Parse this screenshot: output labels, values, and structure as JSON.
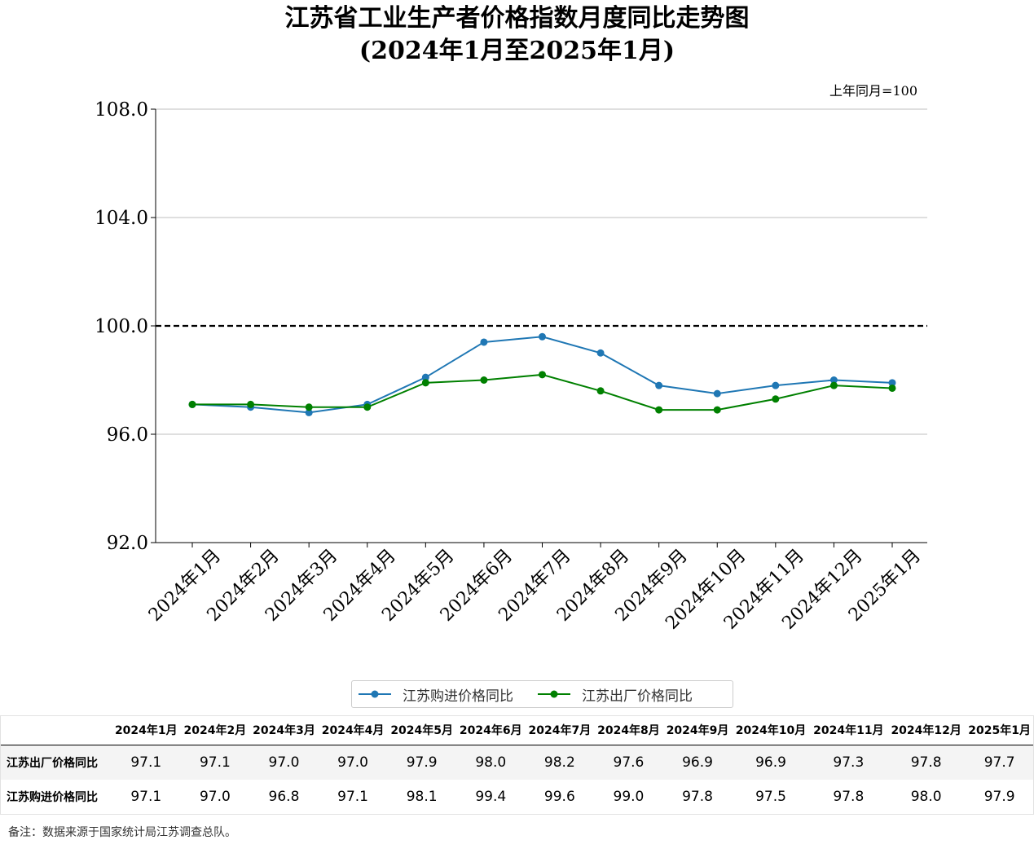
{
  "title_line1": "江苏省工业生产者价格指数月度同比走势图",
  "title_line2": "(2024年1月至2025年1月)",
  "unit_note": "上年同月=100",
  "footnote": "备注：数据来源于国家统计局江苏调查总队。",
  "chart_data": {
    "type": "line",
    "title": "江苏省工业生产者价格指数月度同比走势图 (2024年1月至2025年1月)",
    "xlabel": "",
    "ylabel": "",
    "ylim": [
      92.0,
      108.0
    ],
    "yticks": [
      "92.0",
      "96.0",
      "100.0",
      "104.0",
      "108.0"
    ],
    "reference_line": 100.0,
    "grid": "horizontal",
    "categories": [
      "2024年1月",
      "2024年2月",
      "2024年3月",
      "2024年4月",
      "2024年5月",
      "2024年6月",
      "2024年7月",
      "2024年8月",
      "2024年9月",
      "2024年10月",
      "2024年11月",
      "2024年12月",
      "2025年1月"
    ],
    "series": [
      {
        "name": "江苏购进价格同比",
        "color": "#1f77b4",
        "values": [
          97.1,
          97.0,
          96.8,
          97.1,
          98.1,
          99.4,
          99.6,
          99.0,
          97.8,
          97.5,
          97.8,
          98.0,
          97.9
        ]
      },
      {
        "name": "江苏出厂价格同比",
        "color": "#008000",
        "values": [
          97.1,
          97.1,
          97.0,
          97.0,
          97.9,
          98.0,
          98.2,
          97.6,
          96.9,
          96.9,
          97.3,
          97.8,
          97.7
        ]
      }
    ],
    "legend_position": "bottom-center"
  },
  "table": {
    "headers": [
      "2024年1月",
      "2024年2月",
      "2024年3月",
      "2024年4月",
      "2024年5月",
      "2024年6月",
      "2024年7月",
      "2024年8月",
      "2024年9月",
      "2024年10月",
      "2024年11月",
      "2024年12月",
      "2025年1月"
    ],
    "rows": [
      {
        "label": "江苏出厂价格同比",
        "values": [
          "97.1",
          "97.1",
          "97.0",
          "97.0",
          "97.9",
          "98.0",
          "98.2",
          "97.6",
          "96.9",
          "96.9",
          "97.3",
          "97.8",
          "97.7"
        ]
      },
      {
        "label": "江苏购进价格同比",
        "values": [
          "97.1",
          "97.0",
          "96.8",
          "97.1",
          "98.1",
          "99.4",
          "99.6",
          "99.0",
          "97.8",
          "97.5",
          "97.8",
          "98.0",
          "97.9"
        ]
      }
    ]
  }
}
